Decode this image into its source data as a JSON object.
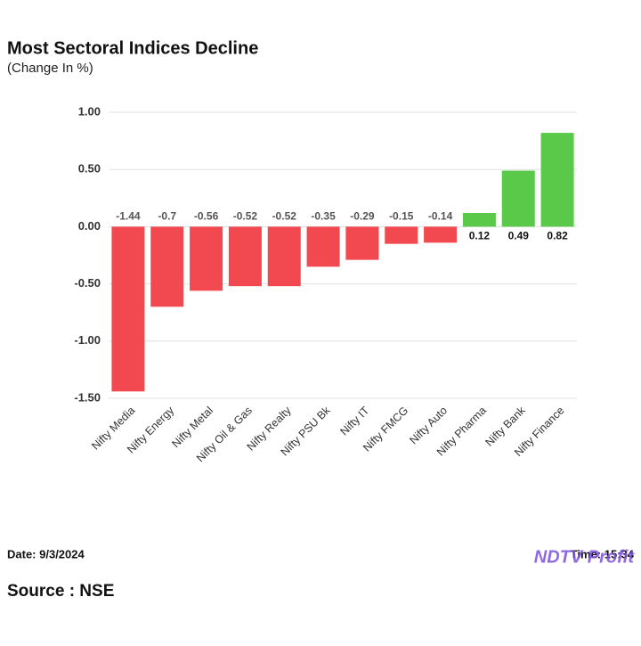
{
  "chart_data": {
    "type": "bar",
    "title": "Most Sectoral Indices Decline",
    "subtitle": "(Change In %)",
    "categories": [
      "Nifty Media",
      "Nifty Energy",
      "Nifty Metal",
      "Nifty Oil & Gas",
      "Nifty Realty",
      "Nifty PSU Bk",
      "Nifty IT",
      "Nifty FMCG",
      "Nifty Auto",
      "Nifty Pharma",
      "Nifty Bank",
      "Nifty Finance"
    ],
    "values": [
      -1.44,
      -0.7,
      -0.56,
      -0.52,
      -0.52,
      -0.35,
      -0.29,
      -0.15,
      -0.14,
      0.12,
      0.49,
      0.82
    ],
    "negative_color": "#f2484f",
    "positive_color": "#5ac94a",
    "ylim": [
      -1.5,
      1.0
    ],
    "yticks": [
      {
        "value": 1.0,
        "label": "1.00"
      },
      {
        "value": 0.5,
        "label": "0.50"
      },
      {
        "value": 0.0,
        "label": "0.00"
      },
      {
        "value": -0.5,
        "label": "-0.50"
      },
      {
        "value": -1.0,
        "label": "-1.00"
      },
      {
        "value": -1.5,
        "label": "-1.50"
      }
    ],
    "grid": true,
    "date": "Date: 9/3/2024",
    "time": "Time: 15:34",
    "logo": "NDTV Profit",
    "source": "Source : NSE"
  }
}
